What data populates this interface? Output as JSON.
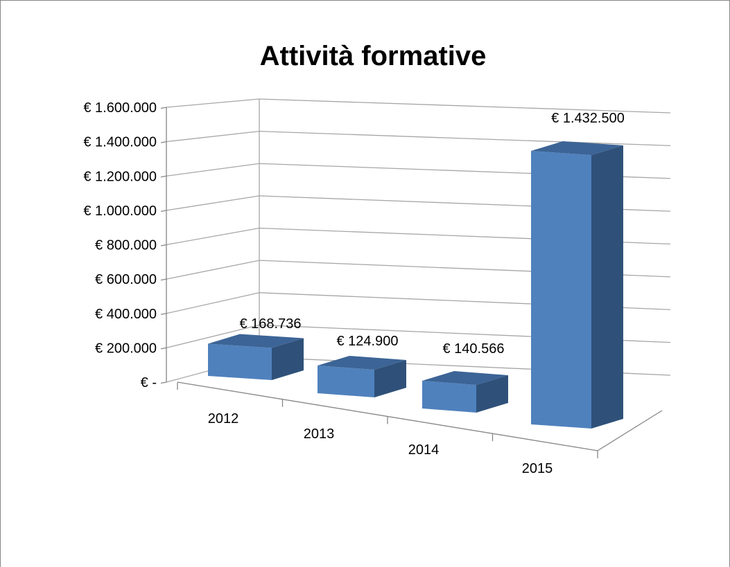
{
  "chart_data": {
    "type": "bar",
    "title": "Attività formative",
    "categories": [
      "2012",
      "2013",
      "2014",
      "2015"
    ],
    "values": [
      168736,
      124900,
      140566,
      1432500
    ],
    "data_labels": [
      "€ 168.736",
      "€ 124.900",
      "€ 140.566",
      "€ 1.432.500"
    ],
    "y_ticks": [
      0,
      200000,
      400000,
      600000,
      800000,
      1000000,
      1200000,
      1400000,
      1600000
    ],
    "y_tick_labels": [
      "€ -",
      "€ 200.000",
      "€ 400.000",
      "€ 600.000",
      "€ 800.000",
      "€ 1.000.000",
      "€ 1.200.000",
      "€ 1.400.000",
      "€ 1.600.000"
    ],
    "ylim": [
      0,
      1600000
    ],
    "grid": true,
    "legend": "none",
    "style": "3d-column",
    "colors": {
      "front": "#4F81BD",
      "top": "#3C6496",
      "side": "#2F5179",
      "grid": "#A6A6A6",
      "frame": "#868686"
    }
  }
}
